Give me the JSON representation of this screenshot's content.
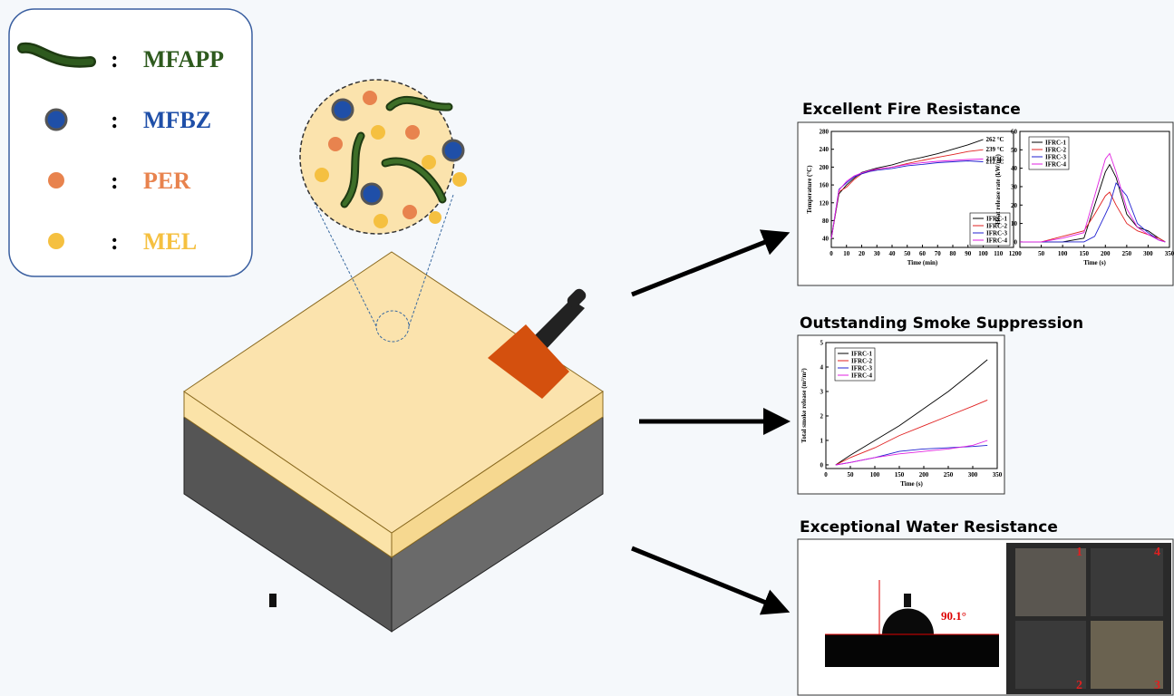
{
  "legend": [
    {
      "name": "MFAPP",
      "separator": ":",
      "color": "#2e5a1e"
    },
    {
      "name": "MFBZ",
      "separator": ":",
      "color": "#1f4fa8"
    },
    {
      "name": "PER",
      "separator": ":",
      "color": "#e8834e"
    },
    {
      "name": "MEL",
      "separator": ":",
      "color": "#f5c040"
    }
  ],
  "sections": [
    {
      "title": "Excellent Fire Resistance"
    },
    {
      "title": "Outstanding Smoke Suppression"
    },
    {
      "title": "Exceptional Water Resistance",
      "contact_angle": "90.1°",
      "samples": [
        "1",
        "4",
        "2",
        "3"
      ]
    }
  ],
  "chart_data": [
    {
      "type": "line",
      "x_label": "Time (min)",
      "y_label": "Temperature (°C)",
      "x": [
        0,
        5,
        10,
        15,
        20,
        25,
        30,
        40,
        50,
        60,
        70,
        80,
        90,
        100
      ],
      "series": [
        {
          "name": "IFRC-1",
          "color": "#000000",
          "values": [
            40,
            140,
            160,
            175,
            188,
            193,
            198,
            205,
            215,
            222,
            230,
            240,
            250,
            262
          ]
        },
        {
          "name": "IFRC-2",
          "color": "#e02020",
          "values": [
            40,
            145,
            155,
            172,
            185,
            190,
            195,
            200,
            208,
            215,
            222,
            228,
            235,
            239
          ]
        },
        {
          "name": "IFRC-3",
          "color": "#2020d0",
          "values": [
            40,
            150,
            165,
            178,
            185,
            190,
            193,
            197,
            203,
            206,
            210,
            212,
            214,
            212
          ]
        },
        {
          "name": "IFRC-4",
          "color": "#e020e0",
          "values": [
            40,
            148,
            168,
            180,
            187,
            192,
            196,
            200,
            206,
            210,
            213,
            215,
            217,
            218
          ]
        }
      ],
      "annotations": [
        "262 °C",
        "239 °C",
        "212 °C",
        "218 °C"
      ],
      "xlim": [
        0,
        120
      ],
      "xticks": [
        0,
        10,
        20,
        30,
        40,
        50,
        60,
        70,
        80,
        90,
        100,
        110,
        120
      ],
      "ylim": [
        20,
        280
      ],
      "yticks": [
        40,
        80,
        120,
        160,
        200,
        240,
        280
      ],
      "legend": "lower right"
    },
    {
      "type": "line",
      "x_label": "Time (s)",
      "y_label": "Heat release rate (kW/m²)",
      "x": [
        0,
        50,
        100,
        150,
        175,
        200,
        210,
        225,
        250,
        275,
        300,
        325,
        340
      ],
      "series": [
        {
          "name": "IFRC-1",
          "color": "#000000",
          "values": [
            0,
            0,
            0,
            2,
            20,
            38,
            42,
            35,
            15,
            8,
            6,
            2,
            0
          ]
        },
        {
          "name": "IFRC-2",
          "color": "#e02020",
          "values": [
            0,
            0,
            3,
            6,
            15,
            25,
            27,
            20,
            10,
            6,
            4,
            2,
            0
          ]
        },
        {
          "name": "IFRC-3",
          "color": "#2020d0",
          "values": [
            0,
            0,
            0,
            0,
            3,
            15,
            20,
            32,
            25,
            10,
            5,
            1,
            0
          ]
        },
        {
          "name": "IFRC-4",
          "color": "#e020e0",
          "values": [
            0,
            0,
            2,
            5,
            25,
            45,
            48,
            38,
            18,
            8,
            4,
            1,
            0
          ]
        }
      ],
      "xlim": [
        0,
        350
      ],
      "xticks": [
        0,
        50,
        100,
        150,
        200,
        250,
        300,
        350
      ],
      "ylim": [
        -3,
        60
      ],
      "yticks": [
        0,
        10,
        20,
        30,
        40,
        50,
        60
      ],
      "legend": "upper left"
    },
    {
      "type": "line",
      "x_label": "Time (s)",
      "y_label": "Total smoke release (m²/m²)",
      "x": [
        20,
        50,
        100,
        150,
        200,
        250,
        300,
        330
      ],
      "series": [
        {
          "name": "IFRC-1",
          "color": "#000000",
          "values": [
            0,
            0.4,
            1.0,
            1.6,
            2.3,
            3.0,
            3.8,
            4.3
          ]
        },
        {
          "name": "IFRC-2",
          "color": "#e02020",
          "values": [
            0,
            0.3,
            0.7,
            1.2,
            1.6,
            2.0,
            2.4,
            2.65
          ]
        },
        {
          "name": "IFRC-3",
          "color": "#2020d0",
          "values": [
            0,
            0.1,
            0.3,
            0.55,
            0.65,
            0.7,
            0.75,
            0.8
          ]
        },
        {
          "name": "IFRC-4",
          "color": "#e020e0",
          "values": [
            0,
            0.1,
            0.3,
            0.45,
            0.55,
            0.65,
            0.8,
            1.0
          ]
        }
      ],
      "xlim": [
        0,
        350
      ],
      "xticks": [
        0,
        50,
        100,
        150,
        200,
        250,
        300,
        350
      ],
      "ylim": [
        -0.15,
        5
      ],
      "yticks": [
        0,
        1,
        2,
        3,
        4,
        5
      ],
      "legend": "upper left"
    }
  ]
}
